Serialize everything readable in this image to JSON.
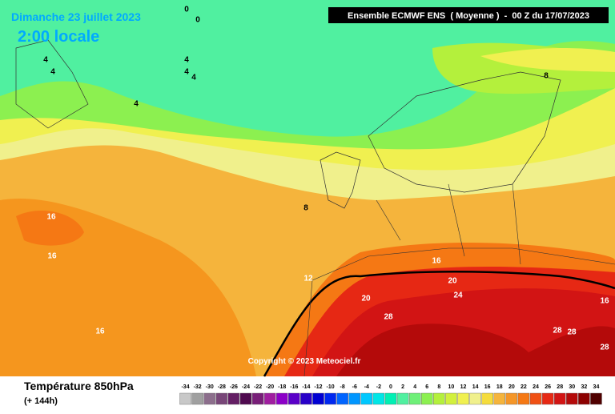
{
  "header": {
    "date": "Dimanche 23 juillet 2023",
    "time": "2:00 locale",
    "model": "Ensemble ECMWF ENS  ( Moyenne )  -  00 Z du 17/07/2023",
    "copyright": "Copyright © 2023 Meteociel.fr"
  },
  "map": {
    "contour_labels": [
      0,
      0,
      4,
      4,
      4,
      4,
      4,
      4,
      8,
      8,
      12,
      16,
      16,
      16,
      16,
      16,
      20,
      20,
      24,
      28,
      28,
      28,
      28
    ]
  },
  "footer": {
    "title": "Température 850hPa",
    "lead": "(+ 144h)"
  },
  "legend": {
    "values": [
      -34,
      -32,
      -30,
      -28,
      -26,
      -24,
      -22,
      -20,
      -18,
      -16,
      -14,
      -12,
      -10,
      -8,
      -6,
      -4,
      -2,
      0,
      2,
      4,
      6,
      8,
      10,
      12,
      14,
      16,
      18,
      20,
      22,
      24,
      26,
      28,
      30,
      32,
      34
    ],
    "colors": [
      "#c8c8c8",
      "#a0a0a0",
      "#8c6e8c",
      "#784678",
      "#641e64",
      "#500a50",
      "#781e78",
      "#a01ea0",
      "#8c00c8",
      "#5a00c8",
      "#2800c8",
      "#0000d2",
      "#0028f0",
      "#0064ff",
      "#0096ff",
      "#00c8ff",
      "#00e6e6",
      "#00f0b4",
      "#50f0a0",
      "#6ef078",
      "#8cf050",
      "#b4f03c",
      "#d2f03c",
      "#f0f050",
      "#f0f08c",
      "#f5dc3c",
      "#f5b43c",
      "#f59628",
      "#f57814",
      "#f05014",
      "#e62814",
      "#d21414",
      "#b40a0a",
      "#8c0000",
      "#500000"
    ]
  }
}
